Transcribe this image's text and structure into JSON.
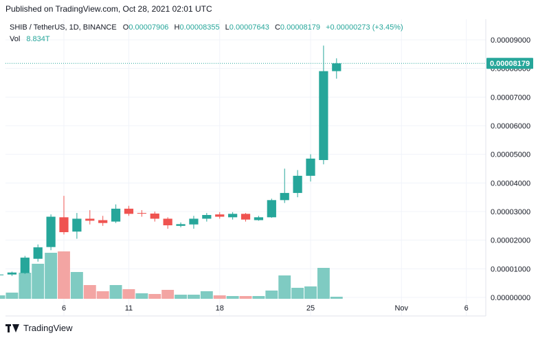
{
  "header": {
    "published": "Published on TradingView.com, Oct 28, 2021 02:01 UTC"
  },
  "legend": {
    "symbol": "SHIB / TetherUS, 1D, BINANCE",
    "o_label": "O",
    "o_value": "0.00007906",
    "h_label": "H",
    "h_value": "0.00008355",
    "l_label": "L",
    "l_value": "0.00007643",
    "c_label": "C",
    "c_value": "0.00008179",
    "change": "+0.00000273 (+3.45%)",
    "vol_label": "Vol",
    "vol_value": "8.834T"
  },
  "footer": {
    "brand": "TradingView"
  },
  "colors": {
    "up": "#26a69a",
    "down": "#ef5350",
    "vol_up": "#7fcbc2",
    "vol_down": "#f3a5a3",
    "grid": "#f0f3fa",
    "axis_text": "#131722"
  },
  "chart_data": {
    "type": "candlestick",
    "price_ticks": [
      "0.00009000",
      "0.00008000",
      "0.00007000",
      "0.00006000",
      "0.00005000",
      "0.00004000",
      "0.00003000",
      "0.00002000",
      "0.00001000",
      "0.00000000"
    ],
    "price_tick_values": [
      9e-05,
      8e-05,
      7e-05,
      6e-05,
      5e-05,
      4e-05,
      3e-05,
      2e-05,
      1e-05,
      0
    ],
    "x_ticks": [
      "6",
      "11",
      "18",
      "25",
      "Nov",
      "6"
    ],
    "x_tick_days": [
      6,
      11,
      18,
      25,
      32,
      37
    ],
    "last_price_label": "0.00008179",
    "last_price": 8.179e-05,
    "ylim": [
      0,
      9e-05
    ],
    "candles": [
      {
        "day": 1,
        "o": 7.9e-06,
        "h": 8.3e-06,
        "l": 7.6e-06,
        "c": 8e-06
      },
      {
        "day": 2,
        "o": 8e-06,
        "h": 9e-06,
        "l": 7.5e-06,
        "c": 8.7e-06
      },
      {
        "day": 3,
        "o": 8.5e-06,
        "h": 1.45e-05,
        "l": 8.2e-06,
        "c": 1.39e-05
      },
      {
        "day": 4,
        "o": 1.35e-05,
        "h": 1.85e-05,
        "l": 1.25e-05,
        "c": 1.75e-05
      },
      {
        "day": 5,
        "o": 1.76e-05,
        "h": 2.9e-05,
        "l": 1.65e-05,
        "c": 2.82e-05
      },
      {
        "day": 6,
        "o": 2.8e-05,
        "h": 3.55e-05,
        "l": 2.2e-05,
        "c": 2.28e-05
      },
      {
        "day": 7,
        "o": 2.3e-05,
        "h": 2.95e-05,
        "l": 2.05e-05,
        "c": 2.75e-05
      },
      {
        "day": 8,
        "o": 2.75e-05,
        "h": 3.05e-05,
        "l": 2.55e-05,
        "c": 2.68e-05
      },
      {
        "day": 9,
        "o": 2.7e-05,
        "h": 2.85e-05,
        "l": 2.5e-05,
        "c": 2.6e-05
      },
      {
        "day": 10,
        "o": 2.65e-05,
        "h": 3.25e-05,
        "l": 2.6e-05,
        "c": 3.1e-05
      },
      {
        "day": 11,
        "o": 3.1e-05,
        "h": 3.2e-05,
        "l": 2.85e-05,
        "c": 2.92e-05
      },
      {
        "day": 12,
        "o": 2.95e-05,
        "h": 3.05e-05,
        "l": 2.82e-05,
        "c": 2.93e-05
      },
      {
        "day": 13,
        "o": 2.93e-05,
        "h": 3e-05,
        "l": 2.65e-05,
        "c": 2.75e-05
      },
      {
        "day": 14,
        "o": 2.75e-05,
        "h": 2.8e-05,
        "l": 2.4e-05,
        "c": 2.52e-05
      },
      {
        "day": 15,
        "o": 2.5e-05,
        "h": 2.62e-05,
        "l": 2.45e-05,
        "c": 2.56e-05
      },
      {
        "day": 16,
        "o": 2.55e-05,
        "h": 2.85e-05,
        "l": 2.4e-05,
        "c": 2.75e-05
      },
      {
        "day": 17,
        "o": 2.75e-05,
        "h": 2.95e-05,
        "l": 2.65e-05,
        "c": 2.88e-05
      },
      {
        "day": 18,
        "o": 2.9e-05,
        "h": 2.98e-05,
        "l": 2.75e-05,
        "c": 2.82e-05
      },
      {
        "day": 19,
        "o": 2.8e-05,
        "h": 2.98e-05,
        "l": 2.72e-05,
        "c": 2.92e-05
      },
      {
        "day": 20,
        "o": 2.92e-05,
        "h": 2.95e-05,
        "l": 2.65e-05,
        "c": 2.72e-05
      },
      {
        "day": 21,
        "o": 2.7e-05,
        "h": 2.85e-05,
        "l": 2.68e-05,
        "c": 2.8e-05
      },
      {
        "day": 22,
        "o": 2.8e-05,
        "h": 3.45e-05,
        "l": 2.78e-05,
        "c": 3.4e-05
      },
      {
        "day": 23,
        "o": 3.4e-05,
        "h": 4.5e-05,
        "l": 3.3e-05,
        "c": 3.65e-05
      },
      {
        "day": 24,
        "o": 3.65e-05,
        "h": 4.45e-05,
        "l": 3.5e-05,
        "c": 4.25e-05
      },
      {
        "day": 25,
        "o": 4.25e-05,
        "h": 5e-05,
        "l": 4.05e-05,
        "c": 4.85e-05
      },
      {
        "day": 26,
        "o": 4.8e-05,
        "h": 8.8e-05,
        "l": 4.65e-05,
        "c": 7.906e-05
      },
      {
        "day": 27,
        "o": 7.906e-05,
        "h": 8.355e-05,
        "l": 7.643e-05,
        "c": 8.179e-05
      }
    ],
    "volume": [
      {
        "day": 1,
        "v": 0.5,
        "up": true
      },
      {
        "day": 2,
        "v": 0.9,
        "up": true
      },
      {
        "day": 3,
        "v": 3.8,
        "up": true
      },
      {
        "day": 4,
        "v": 5.1,
        "up": true
      },
      {
        "day": 5,
        "v": 6.7,
        "up": true
      },
      {
        "day": 6,
        "v": 6.9,
        "up": false
      },
      {
        "day": 7,
        "v": 3.9,
        "up": true
      },
      {
        "day": 8,
        "v": 2.0,
        "up": false
      },
      {
        "day": 9,
        "v": 1.1,
        "up": false
      },
      {
        "day": 10,
        "v": 2.0,
        "up": true
      },
      {
        "day": 11,
        "v": 1.4,
        "up": false
      },
      {
        "day": 12,
        "v": 0.8,
        "up": true
      },
      {
        "day": 13,
        "v": 0.7,
        "up": false
      },
      {
        "day": 14,
        "v": 1.3,
        "up": false
      },
      {
        "day": 15,
        "v": 0.6,
        "up": true
      },
      {
        "day": 16,
        "v": 0.6,
        "up": true
      },
      {
        "day": 17,
        "v": 1.1,
        "up": true
      },
      {
        "day": 18,
        "v": 0.5,
        "up": false
      },
      {
        "day": 19,
        "v": 0.4,
        "up": true
      },
      {
        "day": 20,
        "v": 0.4,
        "up": false
      },
      {
        "day": 21,
        "v": 0.4,
        "up": true
      },
      {
        "day": 22,
        "v": 1.2,
        "up": true
      },
      {
        "day": 23,
        "v": 3.4,
        "up": true
      },
      {
        "day": 24,
        "v": 1.6,
        "up": true
      },
      {
        "day": 25,
        "v": 1.8,
        "up": true
      },
      {
        "day": 26,
        "v": 4.5,
        "up": true
      },
      {
        "day": 27,
        "v": 0.3,
        "up": true
      }
    ]
  }
}
